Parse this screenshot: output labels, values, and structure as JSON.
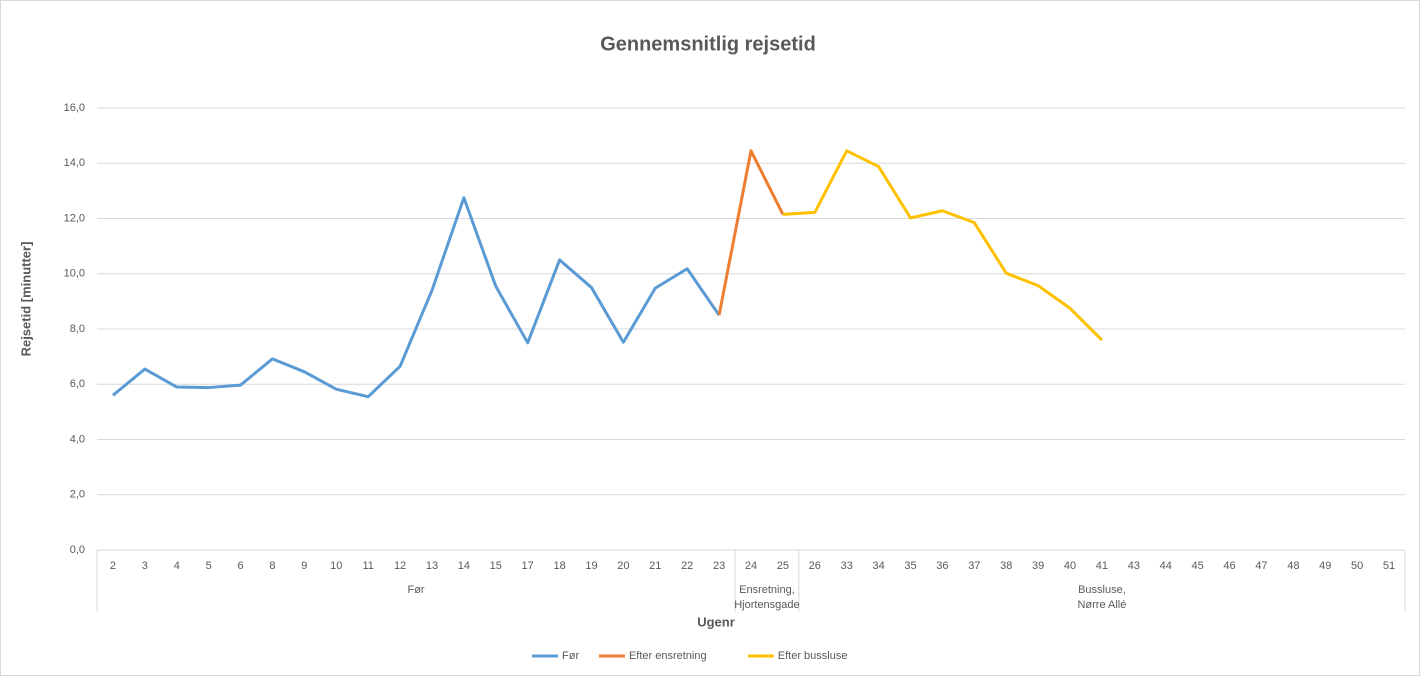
{
  "chart_data": {
    "type": "line",
    "title": "Gennemsnitlig rejsetid",
    "x_label": "Ugenr",
    "y_label": "Rejsetid [minutter]",
    "groups": [
      {
        "label_lines": [
          "Før"
        ],
        "categories": [
          "2",
          "3",
          "4",
          "5",
          "6",
          "8",
          "9",
          "10",
          "11",
          "12",
          "13",
          "14",
          "15",
          "17",
          "18",
          "19",
          "20",
          "21",
          "22",
          "23"
        ]
      },
      {
        "label_lines": [
          "Ensretning,",
          "Hjortensgade"
        ],
        "categories": [
          "24",
          "25"
        ]
      },
      {
        "label_lines": [
          "Bussluse,",
          "Nørre Allé"
        ],
        "categories": [
          "26",
          "33",
          "34",
          "35",
          "36",
          "37",
          "38",
          "39",
          "40",
          "41",
          "43",
          "44",
          "45",
          "46",
          "47",
          "48",
          "49",
          "50",
          "51"
        ]
      }
    ],
    "series": [
      {
        "name": "Før",
        "color": "#5b9bd5",
        "values": [
          5.6,
          6.55,
          5.9,
          5.88,
          5.97,
          6.92,
          6.45,
          5.82,
          5.55,
          6.65,
          9.4,
          12.75,
          9.55,
          7.5,
          10.5,
          9.5,
          7.52,
          9.48,
          10.18,
          8.5,
          null,
          null,
          null,
          null,
          null,
          null,
          null,
          null,
          null,
          null,
          null,
          null,
          null,
          null,
          null,
          null,
          null,
          null,
          null,
          null,
          null
        ]
      },
      {
        "name": "Efter ensretning",
        "color": "#ed7d31",
        "values": [
          null,
          null,
          null,
          null,
          null,
          null,
          null,
          null,
          null,
          null,
          null,
          null,
          null,
          null,
          null,
          null,
          null,
          null,
          null,
          8.5,
          14.45,
          12.15,
          null,
          null,
          null,
          null,
          null,
          null,
          null,
          null,
          null,
          null,
          null,
          null,
          null,
          null,
          null,
          null,
          null,
          null,
          null
        ]
      },
      {
        "name": "Efter bussluse",
        "color": "#ffc000",
        "values": [
          null,
          null,
          null,
          null,
          null,
          null,
          null,
          null,
          null,
          null,
          null,
          null,
          null,
          null,
          null,
          null,
          null,
          null,
          null,
          null,
          null,
          12.15,
          12.22,
          14.45,
          13.88,
          12.02,
          12.28,
          11.85,
          10.02,
          9.57,
          8.75,
          7.6,
          null,
          null,
          null,
          null,
          null,
          null,
          null,
          null,
          null
        ]
      }
    ],
    "ylim": [
      0,
      16
    ],
    "yticks": [
      {
        "value": 0,
        "label": "0,0"
      },
      {
        "value": 2,
        "label": "2,0"
      },
      {
        "value": 4,
        "label": "4,0"
      },
      {
        "value": 6,
        "label": "6,0"
      },
      {
        "value": 8,
        "label": "8,0"
      },
      {
        "value": 10,
        "label": "10,0"
      },
      {
        "value": 12,
        "label": "12,0"
      },
      {
        "value": 14,
        "label": "14,0"
      },
      {
        "value": 16,
        "label": "16,0"
      }
    ],
    "grid": true,
    "legend": "bottom"
  }
}
